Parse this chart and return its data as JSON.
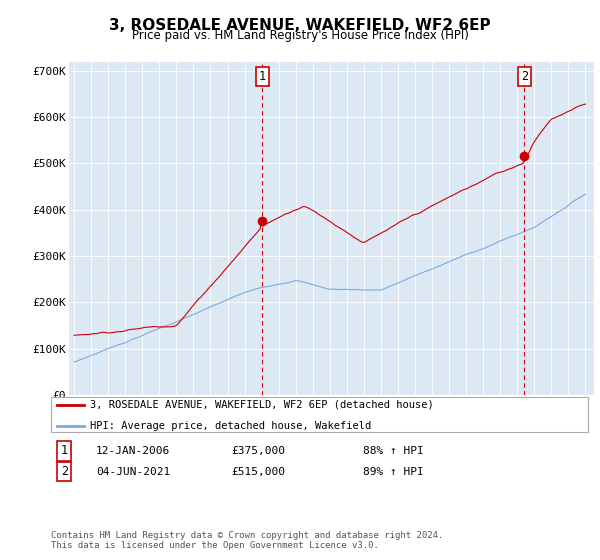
{
  "title": "3, ROSEDALE AVENUE, WAKEFIELD, WF2 6EP",
  "subtitle": "Price paid vs. HM Land Registry's House Price Index (HPI)",
  "background_color": "#dce9f5",
  "ylim": [
    0,
    720000
  ],
  "yticks": [
    0,
    100000,
    200000,
    300000,
    400000,
    500000,
    600000,
    700000
  ],
  "ytick_labels": [
    "£0",
    "£100K",
    "£200K",
    "£300K",
    "£400K",
    "£500K",
    "£600K",
    "£700K"
  ],
  "xlim_start": 1994.7,
  "xlim_end": 2025.5,
  "red_line_color": "#cc0000",
  "blue_line_color": "#7aaadd",
  "marker1_x": 2006.04,
  "marker1_y": 375000,
  "marker2_x": 2021.42,
  "marker2_y": 515000,
  "legend_red_label": "3, ROSEDALE AVENUE, WAKEFIELD, WF2 6EP (detached house)",
  "legend_blue_label": "HPI: Average price, detached house, Wakefield",
  "annotation1_label": "1",
  "annotation1_date": "12-JAN-2006",
  "annotation1_price": "£375,000",
  "annotation1_hpi": "88% ↑ HPI",
  "annotation2_label": "2",
  "annotation2_date": "04-JUN-2021",
  "annotation2_price": "£515,000",
  "annotation2_hpi": "89% ↑ HPI",
  "footer": "Contains HM Land Registry data © Crown copyright and database right 2024.\nThis data is licensed under the Open Government Licence v3.0."
}
